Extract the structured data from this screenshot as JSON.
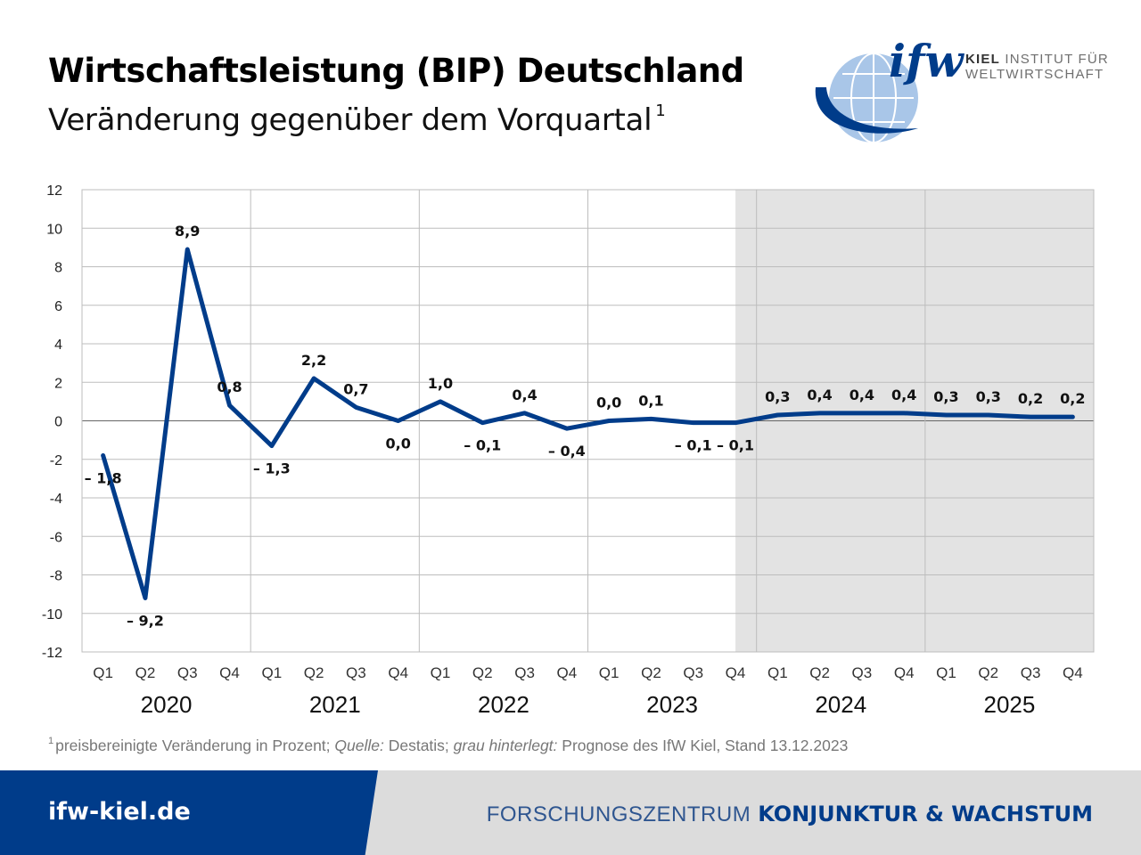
{
  "header": {
    "title": "Wirtschaftsleistung (BIP) Deutschland",
    "subtitle": "Veränderung gegenüber dem Vorquartal",
    "subtitle_footnote_mark": "1"
  },
  "logo": {
    "wordmark": "ifw",
    "institute_line1_bold": "KIEL",
    "institute_line1_rest": "INSTITUT FÜR",
    "institute_line2": "WELTWIRTSCHAFT"
  },
  "chart_data": {
    "type": "line",
    "title": "Wirtschaftsleistung (BIP) Deutschland",
    "subtitle": "Veränderung gegenüber dem Vorquartal",
    "xlabel": "",
    "ylabel": "",
    "ylim": [
      -12,
      12
    ],
    "yticks": [
      12,
      10,
      8,
      6,
      4,
      2,
      0,
      -2,
      -4,
      -6,
      -8,
      -10,
      -12
    ],
    "grid": true,
    "legend": "none",
    "years": [
      "2020",
      "2021",
      "2022",
      "2023",
      "2024",
      "2025"
    ],
    "quarter_labels": [
      "Q1",
      "Q2",
      "Q3",
      "Q4"
    ],
    "categories": [
      "Q1 2020",
      "Q2 2020",
      "Q3 2020",
      "Q4 2020",
      "Q1 2021",
      "Q2 2021",
      "Q3 2021",
      "Q4 2021",
      "Q1 2022",
      "Q2 2022",
      "Q3 2022",
      "Q4 2022",
      "Q1 2023",
      "Q2 2023",
      "Q3 2023",
      "Q4 2023",
      "Q1 2024",
      "Q2 2024",
      "Q3 2024",
      "Q4 2024",
      "Q1 2025",
      "Q2 2025",
      "Q3 2025",
      "Q4 2025"
    ],
    "values": [
      -1.8,
      -9.2,
      8.9,
      0.8,
      -1.3,
      2.2,
      0.7,
      0.0,
      1.0,
      -0.1,
      0.4,
      -0.4,
      0.0,
      0.1,
      -0.1,
      -0.1,
      0.3,
      0.4,
      0.4,
      0.4,
      0.3,
      0.3,
      0.2,
      0.2
    ],
    "data_labels": [
      "– 1,8",
      "– 9,2",
      "8,9",
      "0,8",
      "– 1,3",
      "2,2",
      "0,7",
      "0,0",
      "1,0",
      "– 0,1",
      "0,4",
      "– 0,4",
      "0,0",
      "0,1",
      "– 0,1",
      "– 0,1",
      "0,3",
      "0,4",
      "0,4",
      "0,4",
      "0,3",
      "0,3",
      "0,2",
      "0,2"
    ],
    "forecast_from_category": "Q4 2023",
    "line_color": "#003c8a",
    "forecast_shade_color": "#e3e3e3"
  },
  "footnote": {
    "mark": "1",
    "part1": "preisbereinigte Veränderung in Prozent; ",
    "source_label": "Quelle:",
    "part2": " Destatis; ",
    "shade_label": "grau hinterlegt:",
    "part3": " Prognose des IfW Kiel, Stand 13.12.2023"
  },
  "footer": {
    "url": "ifw-kiel.de",
    "division_prefix": "FORSCHUNGSZENTRUM",
    "division_name": "KONJUNKTUR & WACHSTUM"
  },
  "colors": {
    "brand_blue": "#003c8a",
    "footer_gray": "#dcdcdc",
    "logo_light_blue": "#a9c6e8"
  }
}
